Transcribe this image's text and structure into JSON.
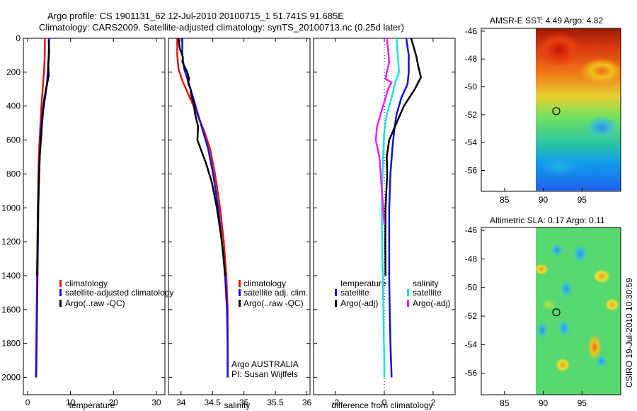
{
  "title_line1": "Argo profile: CS 1901131_62 12-Jul-2010 20100715_1 51.741S 91.685E",
  "title_line2": "Climatology: CARS2009. Satellite-adjusted climatology: synTS_20100713.nc (0.25d later)",
  "side_label": "CSIRO 19-Jul-2010 10:30:59",
  "depth_ticks": [
    "0",
    "200",
    "400",
    "600",
    "800",
    "1000",
    "1200",
    "1400",
    "1600",
    "1800",
    "2000"
  ],
  "colors": {
    "red": "#e8140c",
    "blue": "#1010e0",
    "black": "#000000",
    "cyan": "#20e0e0",
    "magenta": "#f020f0"
  },
  "chart_data": [
    {
      "type": "line",
      "id": "temperature",
      "xlabel": "temperature",
      "xlim": [
        -1,
        32
      ],
      "ylim": [
        2050,
        0
      ],
      "x_ticks": [
        "0",
        "10",
        "20",
        "30"
      ],
      "legend": [
        "climatology",
        "satellite-adjusted climatology",
        "Argo(..raw -QC)"
      ],
      "series": [
        {
          "name": "climatology",
          "color": "red",
          "points": [
            [
              4.0,
              0
            ],
            [
              4.0,
              100
            ],
            [
              3.8,
              200
            ],
            [
              3.5,
              300
            ],
            [
              3.2,
              400
            ],
            [
              3.0,
              500
            ],
            [
              2.8,
              600
            ],
            [
              2.6,
              700
            ],
            [
              2.5,
              800
            ],
            [
              2.4,
              1000
            ],
            [
              2.3,
              1200
            ],
            [
              2.2,
              1400
            ],
            [
              2.1,
              1600
            ],
            [
              2.0,
              1800
            ],
            [
              1.9,
              2000
            ]
          ]
        },
        {
          "name": "satellite-adjusted climatology",
          "color": "blue",
          "points": [
            [
              5.0,
              0
            ],
            [
              4.9,
              100
            ],
            [
              4.7,
              200
            ],
            [
              4.5,
              270
            ],
            [
              3.9,
              350
            ],
            [
              3.4,
              450
            ],
            [
              3.1,
              550
            ],
            [
              2.9,
              650
            ],
            [
              2.7,
              800
            ],
            [
              2.5,
              1000
            ],
            [
              2.4,
              1200
            ],
            [
              2.3,
              1400
            ],
            [
              2.2,
              1600
            ],
            [
              2.1,
              1800
            ],
            [
              2.0,
              2000
            ]
          ]
        },
        {
          "name": "Argo(..raw -QC)",
          "color": "black",
          "points": [
            [
              4.9,
              10
            ],
            [
              5.0,
              80
            ],
            [
              4.8,
              160
            ],
            [
              4.9,
              220
            ],
            [
              4.4,
              290
            ],
            [
              4.0,
              360
            ],
            [
              3.6,
              430
            ],
            [
              3.3,
              520
            ],
            [
              3.1,
              600
            ],
            [
              2.8,
              700
            ],
            [
              2.6,
              850
            ],
            [
              2.4,
              1000
            ],
            [
              2.3,
              1200
            ],
            [
              2.2,
              1400
            ]
          ]
        }
      ]
    },
    {
      "type": "line",
      "id": "salinity",
      "xlabel": "salinity",
      "xlim": [
        33.8,
        36.05
      ],
      "ylim": [
        2050,
        0
      ],
      "x_ticks": [
        "34",
        "34.5",
        "35",
        "35.5",
        "36"
      ],
      "legend": [
        "climatology",
        "satellite adj. clim.",
        "Argo(..raw -QC)"
      ],
      "annotations": [
        "Argo AUSTRALIA",
        "PI: Susan Wijffels"
      ],
      "series": [
        {
          "name": "climatology",
          "color": "red",
          "points": [
            [
              33.94,
              0
            ],
            [
              33.94,
              100
            ],
            [
              33.96,
              180
            ],
            [
              34.02,
              250
            ],
            [
              34.14,
              350
            ],
            [
              34.26,
              450
            ],
            [
              34.37,
              550
            ],
            [
              34.46,
              650
            ],
            [
              34.54,
              800
            ],
            [
              34.62,
              1000
            ],
            [
              34.68,
              1200
            ],
            [
              34.72,
              1400
            ],
            [
              34.74,
              1600
            ],
            [
              34.74,
              1800
            ],
            [
              34.74,
              2000
            ]
          ]
        },
        {
          "name": "satellite adj. clim.",
          "color": "blue",
          "points": [
            [
              34.02,
              0
            ],
            [
              34.02,
              100
            ],
            [
              34.05,
              180
            ],
            [
              34.12,
              260
            ],
            [
              34.2,
              360
            ],
            [
              34.27,
              450
            ],
            [
              34.35,
              550
            ],
            [
              34.43,
              650
            ],
            [
              34.51,
              800
            ],
            [
              34.59,
              1000
            ],
            [
              34.65,
              1200
            ],
            [
              34.7,
              1400
            ],
            [
              34.73,
              1600
            ],
            [
              34.74,
              1800
            ],
            [
              34.74,
              2000
            ]
          ]
        },
        {
          "name": "Argo(..raw -QC)",
          "color": "black",
          "points": [
            [
              33.96,
              0
            ],
            [
              33.98,
              60
            ],
            [
              34.03,
              110
            ],
            [
              34.02,
              140
            ],
            [
              34.1,
              200
            ],
            [
              34.13,
              240
            ],
            [
              34.11,
              260
            ],
            [
              34.15,
              300
            ],
            [
              34.17,
              350
            ],
            [
              34.2,
              380
            ],
            [
              34.22,
              440
            ],
            [
              34.27,
              520
            ],
            [
              34.26,
              600
            ],
            [
              34.32,
              660
            ],
            [
              34.4,
              740
            ],
            [
              34.49,
              850
            ],
            [
              34.57,
              1000
            ],
            [
              34.63,
              1150
            ],
            [
              34.68,
              1300
            ],
            [
              34.7,
              1400
            ]
          ]
        }
      ]
    },
    {
      "type": "line",
      "id": "difference",
      "xlabel": "difference from climatology",
      "xlim": [
        -2.9,
        2.9
      ],
      "ylim": [
        2050,
        0
      ],
      "x_ticks": [
        "-2",
        "0",
        "2"
      ],
      "legend_headers": [
        "temperature",
        "salinity"
      ],
      "legend": [
        "satellite",
        "Argo(-adj)",
        "satellite",
        "Argo(-adj)"
      ],
      "series": [
        {
          "name": "temperature satellite",
          "color": "blue",
          "points": [
            [
              0.9,
              0
            ],
            [
              1.0,
              100
            ],
            [
              1.0,
              200
            ],
            [
              0.95,
              270
            ],
            [
              0.7,
              350
            ],
            [
              0.5,
              450
            ],
            [
              0.4,
              550
            ],
            [
              0.33,
              650
            ],
            [
              0.25,
              800
            ],
            [
              0.2,
              1000
            ],
            [
              0.2,
              1200
            ],
            [
              0.2,
              1400
            ],
            [
              0.22,
              1600
            ],
            [
              0.25,
              1800
            ],
            [
              0.3,
              2000
            ]
          ]
        },
        {
          "name": "temperature Argo(-adj)",
          "color": "black",
          "points": [
            [
              1.1,
              0
            ],
            [
              1.3,
              100
            ],
            [
              1.4,
              170
            ],
            [
              1.5,
              230
            ],
            [
              1.25,
              300
            ],
            [
              0.8,
              400
            ],
            [
              0.5,
              500
            ],
            [
              0.2,
              600
            ],
            [
              0.1,
              700
            ],
            [
              0.12,
              800
            ],
            [
              0.05,
              1000
            ],
            [
              0.04,
              1200
            ],
            [
              0.05,
              1400
            ]
          ]
        },
        {
          "name": "salinity satellite",
          "color": "cyan",
          "points": [
            [
              0.5,
              0
            ],
            [
              0.55,
              100
            ],
            [
              0.6,
              200
            ],
            [
              0.45,
              260
            ],
            [
              0.3,
              350
            ],
            [
              0.1,
              450
            ],
            [
              0.0,
              550
            ],
            [
              -0.05,
              700
            ],
            [
              -0.1,
              900
            ],
            [
              -0.1,
              1100
            ],
            [
              -0.08,
              1300
            ],
            [
              -0.05,
              1500
            ],
            [
              -0.03,
              1700
            ],
            [
              0.0,
              1900
            ],
            [
              0.0,
              2000
            ]
          ]
        },
        {
          "name": "salinity Argo(-adj)",
          "color": "magenta",
          "points": [
            [
              0.1,
              0
            ],
            [
              0.15,
              60
            ],
            [
              0.2,
              140
            ],
            [
              0.1,
              200
            ],
            [
              0.05,
              240
            ],
            [
              0.3,
              260
            ],
            [
              0.15,
              300
            ],
            [
              -0.05,
              400
            ],
            [
              -0.3,
              520
            ],
            [
              -0.35,
              600
            ],
            [
              -0.2,
              700
            ],
            [
              -0.15,
              800
            ],
            [
              -0.1,
              900
            ],
            [
              -0.05,
              1000
            ],
            [
              0.0,
              1100
            ]
          ]
        }
      ]
    },
    {
      "type": "heatmap",
      "id": "sst_map",
      "title": "AMSR-E SST: 4.49 Argo: 4.82",
      "xlim": [
        82,
        100
      ],
      "ylim": [
        -57.5,
        -45.8
      ],
      "x_ticks": [
        "85",
        "90",
        "95"
      ],
      "y_ticks": [
        "-46",
        "-48",
        "-50",
        "-52",
        "-54",
        "-56"
      ],
      "marker": [
        91.685,
        -51.741
      ],
      "data_lon_min": 90
    },
    {
      "type": "heatmap",
      "id": "sla_map",
      "title": "Altimetric SLA: 0.17 Argo: 0.11",
      "xlim": [
        82,
        100
      ],
      "ylim": [
        -57.5,
        -45.8
      ],
      "x_ticks": [
        "85",
        "90",
        "95"
      ],
      "y_ticks": [
        "-46",
        "-48",
        "-50",
        "-52",
        "-54",
        "-56"
      ],
      "marker": [
        91.685,
        -51.741
      ],
      "data_lon_min": 90
    }
  ]
}
